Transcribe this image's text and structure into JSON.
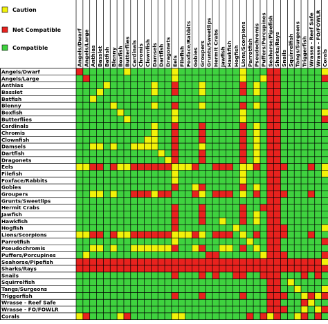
{
  "chart_data": {
    "type": "heatmap",
    "legend": {
      "placement": "top-left",
      "items": [
        {
          "key": "C",
          "label": "Caution",
          "color": "#f2f20a"
        },
        {
          "key": "N",
          "label": "Not Compatible",
          "color": "#e8221e"
        },
        {
          "key": "Y",
          "label": "Compatible",
          "color": "#3fd23f"
        }
      ]
    },
    "rows": [
      "Angels/Dwarf",
      "Angels/Large",
      "Anthias",
      "Basslet",
      "Batfish",
      "Blenny",
      "Boxfish",
      "Butterflies",
      "Cardinals",
      "Chromis",
      "Clownfish",
      "Damsels",
      "Dartfish",
      "Dragonets",
      "Eels",
      "Filefish",
      "Foxface/Rabbits",
      "Gobies",
      "Groupers",
      "Grunts/Sweetlips",
      "Hermit Crabs",
      "Jawfish",
      "Hawkfish",
      "Hogfish",
      "Lions/Scorpions",
      "Parrotfish",
      "Pseudochromis",
      "Puffers/Porcupines",
      "Seahorse/Pipefish",
      "Sharks/Rays",
      "Snails",
      "Squirrelfish",
      "Tangs/Surgeons",
      "Triggerfish",
      "Wrasse - Reef Safe",
      "Wrasse - FO/FOWLR",
      "Corals"
    ],
    "columns": [
      "Angels/Dwarf",
      "Angels/Large",
      "Anthias",
      "Basslet",
      "Batfish",
      "Blenny",
      "Boxfish",
      "Butterflies",
      "Cardinals",
      "Chromis",
      "Clownfish",
      "Damsels",
      "Dartfish",
      "Dragonets",
      "Eels",
      "Filefish",
      "Foxface/Rabbits",
      "Gobies",
      "Groupers",
      "Grunts/Sweetlips",
      "Hermit Crabs",
      "Jawfish",
      "Hawkfish",
      "Hogfish",
      "Lions/Scorpions",
      "Parrotfish",
      "Pseudochromis",
      "Puffers/Porcupines",
      "Seahorse/Pipefish",
      "Sharks/Rays",
      "Snails",
      "Squirrelfish",
      "Tangs/Surgeons",
      "Triggerfish",
      "Wrasse - Reef Safe",
      "Wrasse - FO/FOWLR",
      "Corals"
    ],
    "values": [
      "NYYYYYYCYYYYYYCYYYYYYYYYCYYYNNYYYYYYC",
      "YNYYYYYYYYYYYYCYYYYYYYYYCYYCNNYYYYYYN",
      "YYYYCYYYYYYCYYNYYYCYYYYYNYCYNNYYYYYYY",
      "YYYCYYYYYYYCYYNYYYCYYYYYNYCYNNYYYYYYY",
      "YYCYYYYYYYYYYYYYYYYYYYYYYYYYNNYYYYYYY",
      "YYYYYCYYYYYCYYNYYYCYYYYYNYCYNNYYYYYYY",
      "YYYYYYCYYYYYYYCYYYYYYYYYCYYYNNYYYYYYC",
      "YYYYYYYCYYYYYYCYYYYYYYYYCYYYNNYYYYYYN",
      "YYYYYYYYYYYCYYNYYYNYYYYYNYCYNNYYYYYYY",
      "YYYYYYYYYYYCYYNYYYNYYYYYNYCYNNYYYYYYY",
      "YYYYYYYYYYCCYYNYYYNYYYYYNYCYNNYYYYYYY",
      "YYCCYCYYCCCCYYNYYYCYYYYYNYCYNNYYYYYYY",
      "YYYYYYYYYYYYCYNYYYNYYYYYNYCYNNYYYYYYY",
      "YYYYYYYYYYYYYCNYYYNYYYYYNYCYNNYYYYYYY",
      "CCNNYNCCNNNNNNCCCNYYNNNYCCNYNNNYYYNYC",
      "YYYYYYYYYYYYYYCYYYYYYYYYCYYYNNYYYYYYC",
      "YYYYYYYYYYYYYYCYYYYYYYYYCYYYNNYYYYYYY",
      "YYYYYYYYYYYYYYNYYCNYYYYYNYCYNNYYYYYYY",
      "YYCCYCYYNNNCNNYYYNCYNNNYCYNYNNNYYYNYY",
      "YYYYYYYYYYYYYYYYYYYYYYYYYYYYNNYYYYYYY",
      "YYYYYYYYYYYYYYNYYYNYYYYYNYYNNNYYYYYYY",
      "YYYYYYYYYYYYYYNYYYNYYYYYNYCYNNYYYYYYY",
      "YYYYYYYYYYYYYYNYYYNYYCYYNYCYNNYYYYYYY",
      "YYYYYYYYYYYYYYNYYYYYYYYCYYYYNNNYYYYYC",
      "CCNNYNCCNNNNNNCCCNCYNNNYCYNYNNNYYYNYY",
      "YYYYYYYYYYYYYYCYYYYYYYYYYCYYNNYYYYYYN",
      "YYCCYCYYCCCCCCNYYCNYYCCYNYCYNNYYYYYYY",
      "YCYYYYYYYYYYYYYYYYYNNYYYYYYCNNNYYYYYN",
      "NNNNNNNNNNNNNNNNNNNNNNNNNNNNNNNNNNNNC",
      "NNNNNNNNNNNNNNNNNNNNNNNNNNNNNNNNNNNNN",
      "YYYYYYYYYYYYYYNYYYNYNYYNNYYNNNYYYNYNY",
      "YYYYYYYYYYYYYYYYYYYYYYYYYYYYNNYCYYYYY",
      "YYYYYYYYYYYYYYYYYYYYYYYYYYYYNNYYCYYYC",
      "YYYYYYYYYYYYYYNYYYNYYYYYNYYYNNNYYCNCN",
      "YYYYYYYYYYYYYYYYYYYYYYYYYYYYNNYYYNCYY",
      "YYYYYYYYYYYYYYYYYYYYYYYYYYYYNNNYYCYCN",
      "CNYYYYCNYYYYYYCCYYYYYYYYYNYNCNYYCNYNY"
    ]
  }
}
